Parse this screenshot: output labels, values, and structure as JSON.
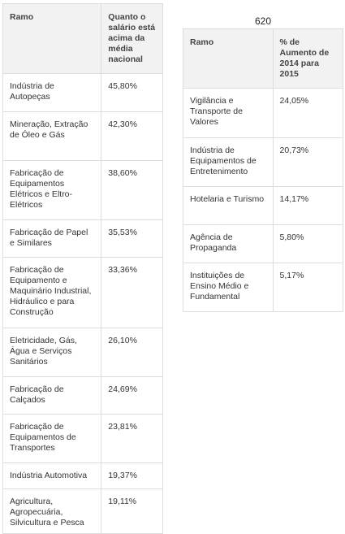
{
  "table1": {
    "headers": [
      "Ramo",
      "Quanto o salário está acima da média nacional"
    ],
    "rows": [
      [
        "Indústria de Autopeças",
        "45,80%"
      ],
      [
        "Mineração, Extração de Óleo e Gás",
        "42,30%"
      ],
      [
        "Fabricação de Equipamentos Elétricos e Eltro-Elétricos",
        "38,60%"
      ],
      [
        "Fabricação de Papel e Similares",
        "35,53%"
      ],
      [
        "Fabricação de Equipamento e Maquinário Industrial, Hidráulico e para Construção",
        "33,36%"
      ],
      [
        "Eletricidade, Gás, Água e Serviços Sanitários",
        "26,10%"
      ],
      [
        "Fabricação de Calçados",
        "24,69%"
      ],
      [
        "Fabricação de Equipamentos de Transportes",
        "23,81%"
      ],
      [
        "Indústria Automotiva",
        "19,37%"
      ],
      [
        "Agricultura, Agropecuária, Silvicultura e Pesca",
        "19,11%"
      ]
    ]
  },
  "page_label": "620",
  "table2": {
    "headers": [
      "Ramo",
      "% de Aumento de 2014 para 2015"
    ],
    "rows": [
      [
        "Vigilância e Transporte de Valores",
        "24,05%"
      ],
      [
        "Indústria de Equipamentos de Entretenimento",
        "20,73%"
      ],
      [
        "Hotelaria e Turismo",
        "14,17%"
      ],
      [
        "Agência de Propaganda",
        "5,80%"
      ],
      [
        "Instituições de Ensino Médio e Fundamental",
        "5,17%"
      ]
    ]
  }
}
